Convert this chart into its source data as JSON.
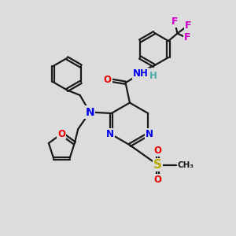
{
  "bg_color": "#dcdcdc",
  "bond_color": "#1a1a1a",
  "bond_width": 1.6,
  "dbo": 0.06,
  "atom_colors": {
    "N": "#0000ee",
    "O": "#ee0000",
    "S": "#bbaa00",
    "F": "#cc00cc",
    "H": "#4aaaaa",
    "C": "#1a1a1a"
  },
  "fs": 8.5,
  "fig_size": [
    3.0,
    3.0
  ],
  "dpi": 100
}
